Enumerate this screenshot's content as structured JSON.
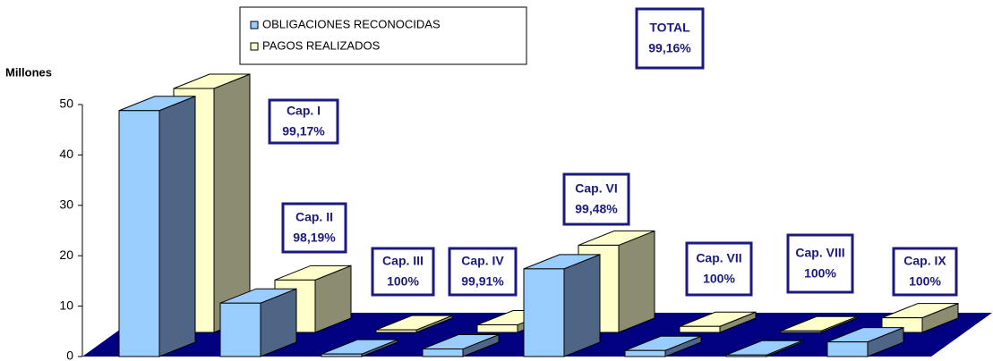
{
  "chart_data": {
    "type": "bar3d",
    "y_axis_label": "Millones",
    "categories": [
      "Cap. I",
      "Cap. II",
      "Cap. III",
      "Cap. IV",
      "Cap. VI",
      "Cap. VII",
      "Cap. VIII",
      "Cap. IX"
    ],
    "percent_labels": [
      "99,17%",
      "98,19%",
      "100%",
      "99,91%",
      "99,48%",
      "100%",
      "100%",
      "100%"
    ],
    "total": {
      "title": "TOTAL",
      "text": "99,16%"
    },
    "series": [
      {
        "name": "OBLIGACIONES RECONOCIDAS",
        "color": "#99ccff",
        "side": "#4f6585",
        "values": [
          48.8,
          10.6,
          0.5,
          1.5,
          17.4,
          1.2,
          0.3,
          2.9
        ]
      },
      {
        "name": "PAGOS REALIZADOS",
        "color": "#ffffcc",
        "side": "#8c8c70",
        "values": [
          48.4,
          10.4,
          0.5,
          1.5,
          17.3,
          1.2,
          0.3,
          2.9
        ]
      }
    ],
    "ylim": [
      0,
      50
    ],
    "yticks": [
      0,
      10,
      20,
      30,
      40,
      50
    ]
  }
}
